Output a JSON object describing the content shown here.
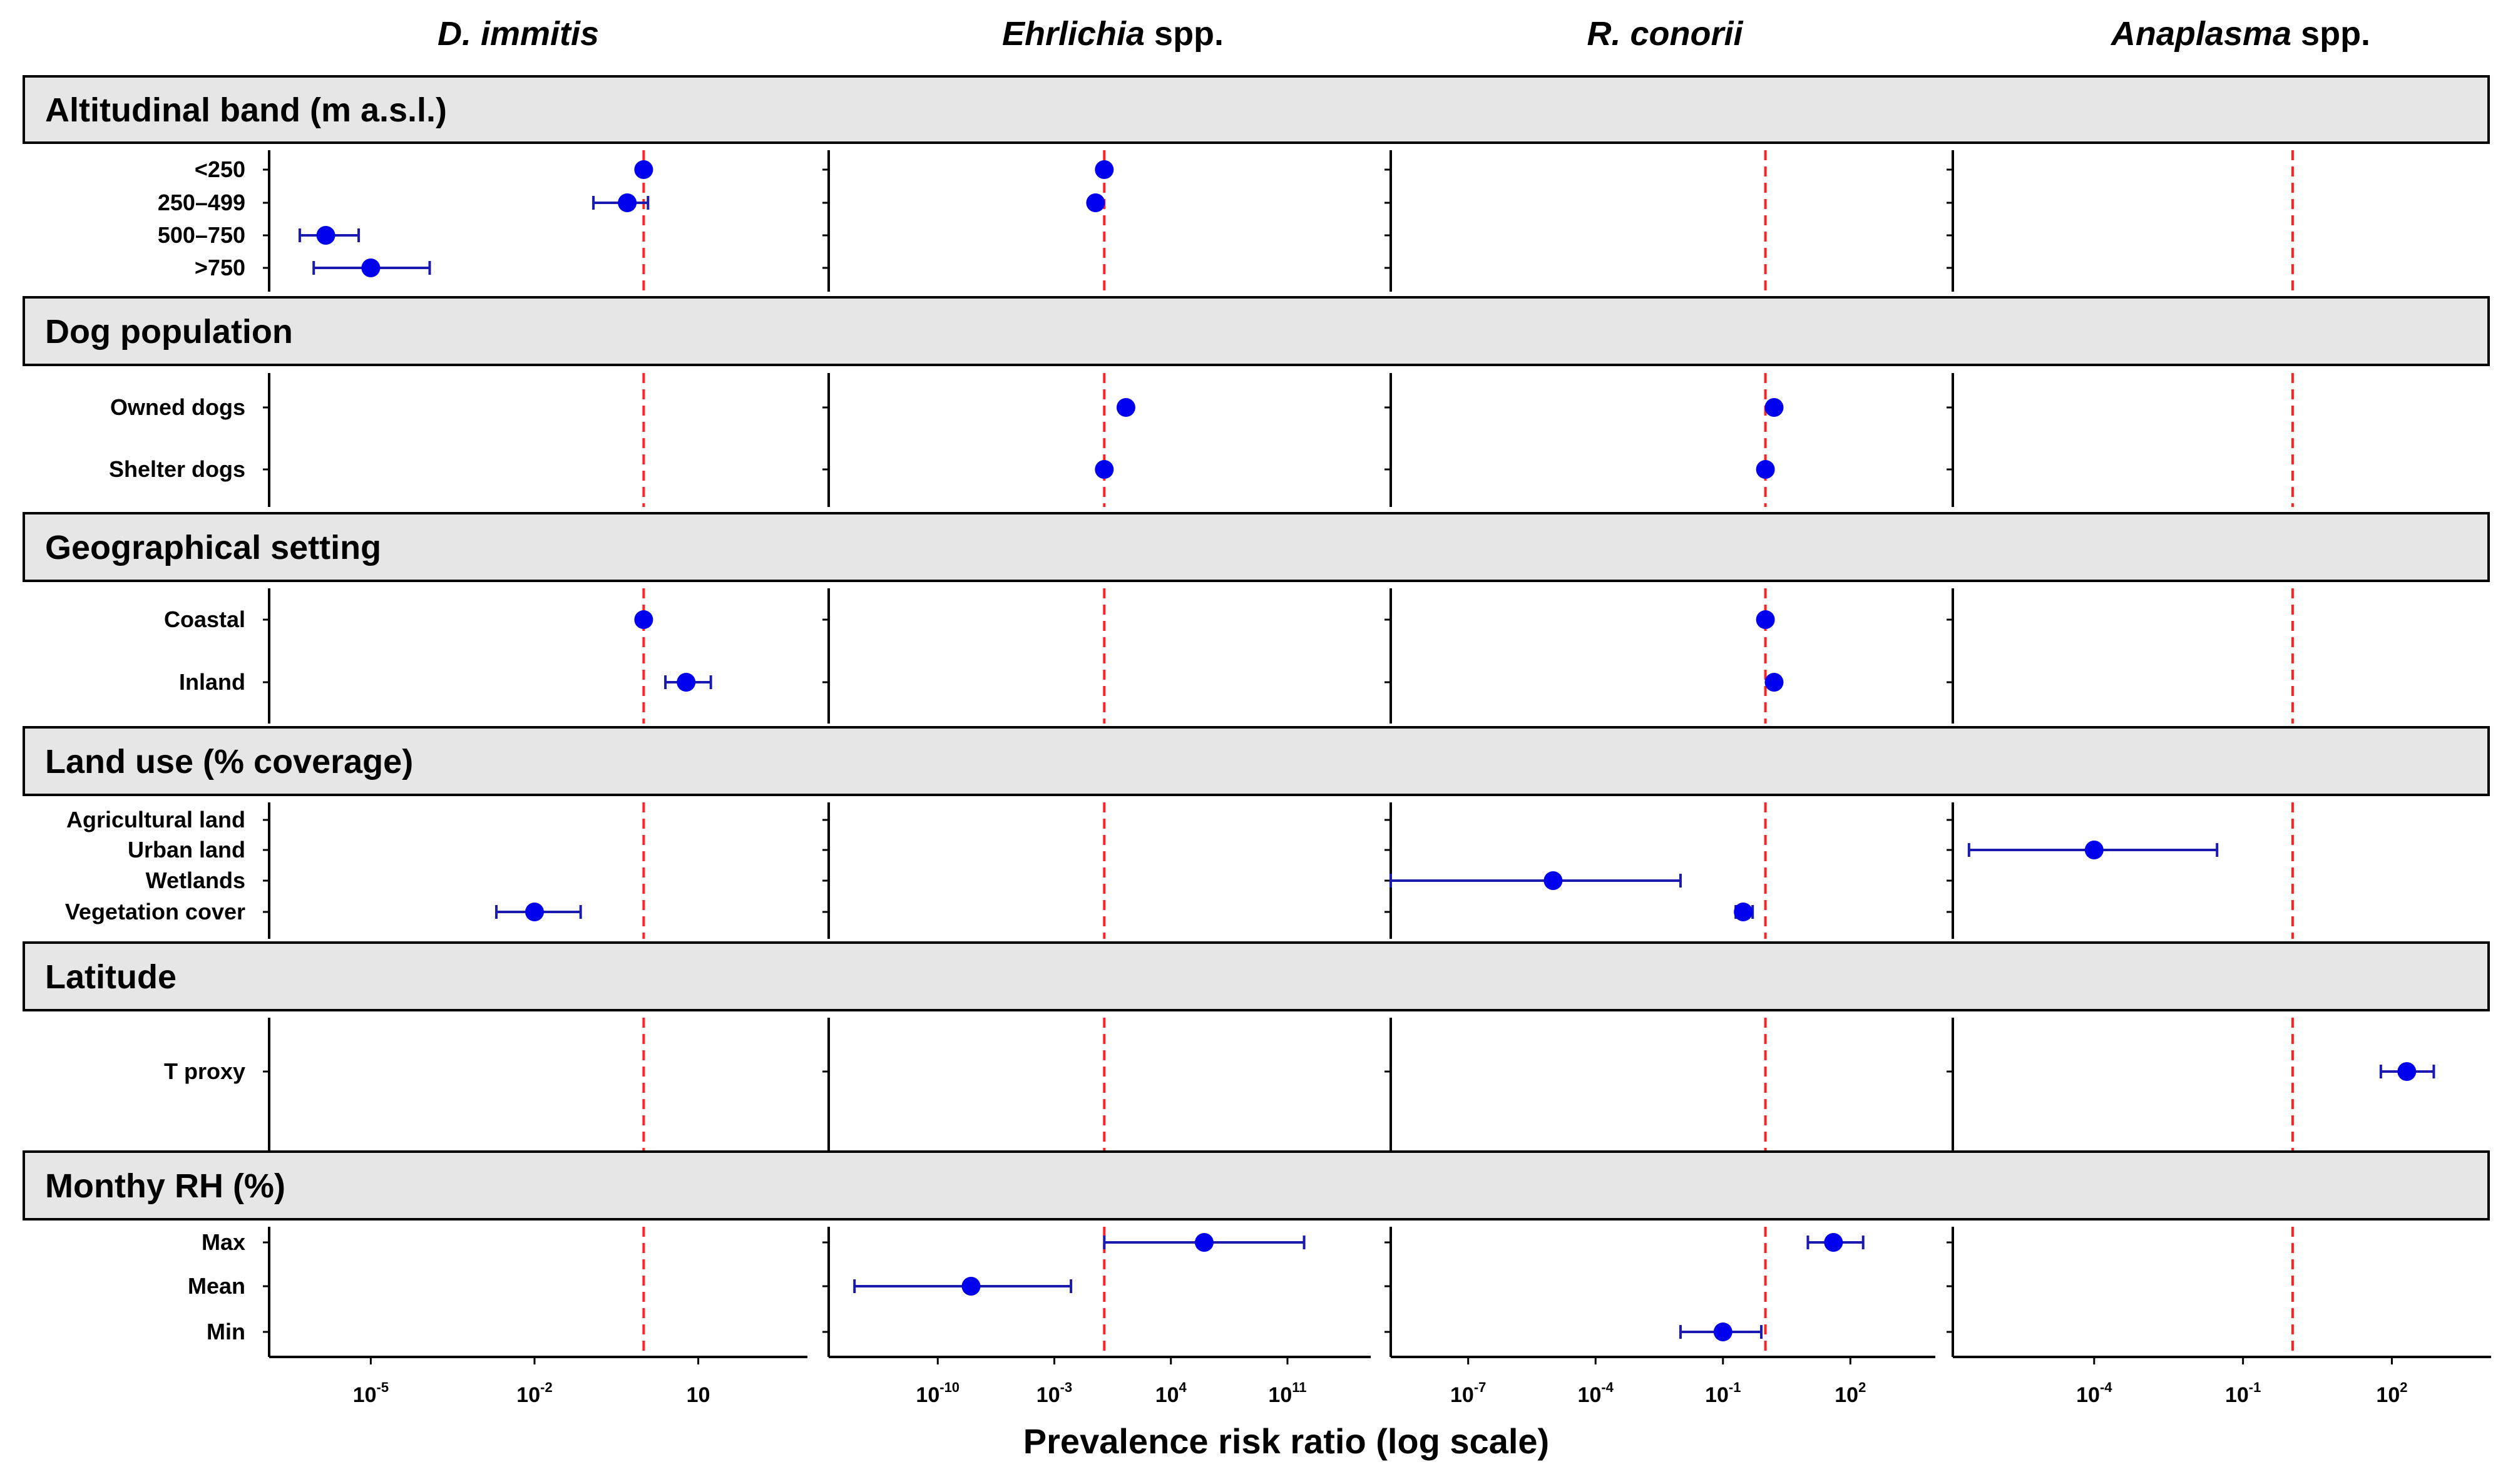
{
  "chart_data": {
    "type": "scatter",
    "xlabel": "Prevalence risk ratio (log scale)",
    "x_scale": "log",
    "reference_line": 1,
    "colors": {
      "point": "#0000ee",
      "ref_line": "#ff2222",
      "header_bg": "#e6e6e6"
    },
    "panels": [
      {
        "title_italic": "D. immitis",
        "title_rest": "",
        "xlim": [
          1e-07,
          1000
        ],
        "ticks": [
          {
            "mant": "10",
            "exp": "-5",
            "value": 1e-05
          },
          {
            "mant": "10",
            "exp": "-2",
            "value": 0.01
          },
          {
            "mant": "10",
            "exp": "",
            "value": 10
          }
        ]
      },
      {
        "title_italic": "Ehrlichia",
        "title_rest": " spp.",
        "xlim": [
          1e-17,
          1e+16
        ],
        "ticks": [
          {
            "mant": "10",
            "exp": "-10",
            "value": 1e-10
          },
          {
            "mant": "10",
            "exp": "-3",
            "value": 0.001
          },
          {
            "mant": "10",
            "exp": "4",
            "value": 10000
          },
          {
            "mant": "10",
            "exp": "11",
            "value": 100000000000.0
          }
        ]
      },
      {
        "title_italic": "R. conorii",
        "title_rest": "",
        "xlim": [
          1e-09,
          10000
        ],
        "ticks": [
          {
            "mant": "10",
            "exp": "-7",
            "value": 1e-07
          },
          {
            "mant": "10",
            "exp": "-4",
            "value": 0.0001
          },
          {
            "mant": "10",
            "exp": "-1",
            "value": 0.1
          },
          {
            "mant": "10",
            "exp": "2",
            "value": 100
          }
        ]
      },
      {
        "title_italic": "Anaplasma",
        "title_rest": " spp.",
        "xlim": [
          1e-07,
          10000
        ],
        "ticks": [
          {
            "mant": "10",
            "exp": "-4",
            "value": 0.0001
          },
          {
            "mant": "10",
            "exp": "-1",
            "value": 0.1
          },
          {
            "mant": "10",
            "exp": "2",
            "value": 100
          }
        ]
      }
    ],
    "groups": [
      {
        "title": "Altitudinal band (m a.s.l.)",
        "rows": [
          "<250",
          "250–499",
          "500–750",
          ">750"
        ],
        "points": [
          {
            "panel": 0,
            "row": 0,
            "est": 1
          },
          {
            "panel": 0,
            "row": 1,
            "est": 0.5,
            "lo": 0.12,
            "hi": 1.2
          },
          {
            "panel": 0,
            "row": 2,
            "est": 1.5e-06,
            "lo": 5e-07,
            "hi": 6e-06
          },
          {
            "panel": 0,
            "row": 3,
            "est": 1e-05,
            "lo": 9e-07,
            "hi": 0.00012
          },
          {
            "panel": 1,
            "row": 0,
            "est": 1
          },
          {
            "panel": 1,
            "row": 1,
            "est": 0.3,
            "lo": 0.15,
            "hi": 0.6
          }
        ]
      },
      {
        "title": "Dog population",
        "rows": [
          "Owned dogs",
          "Shelter dogs"
        ],
        "points": [
          {
            "panel": 1,
            "row": 0,
            "est": 20
          },
          {
            "panel": 1,
            "row": 1,
            "est": 1
          },
          {
            "panel": 2,
            "row": 0,
            "est": 1.6
          },
          {
            "panel": 2,
            "row": 1,
            "est": 1
          }
        ]
      },
      {
        "title": "Geographical setting",
        "rows": [
          "Coastal",
          "Inland"
        ],
        "points": [
          {
            "panel": 0,
            "row": 0,
            "est": 1
          },
          {
            "panel": 0,
            "row": 1,
            "est": 6,
            "lo": 2.5,
            "hi": 17
          },
          {
            "panel": 2,
            "row": 0,
            "est": 1
          },
          {
            "panel": 2,
            "row": 1,
            "est": 1.6
          }
        ]
      },
      {
        "title": "Land use (% coverage)",
        "rows": [
          "Agricultural land",
          "Urban land",
          "Wetlands",
          "Vegetation cover"
        ],
        "points": [
          {
            "panel": 2,
            "row": 2,
            "est": 1e-05,
            "lo": 1.5e-09,
            "hi": 0.01
          },
          {
            "panel": 2,
            "row": 3,
            "est": 0.3,
            "lo": 0.2,
            "hi": 0.5
          },
          {
            "panel": 3,
            "row": 1,
            "est": 0.0001,
            "lo": 3e-07,
            "hi": 0.03
          },
          {
            "panel": 0,
            "row": 3,
            "est": 0.01,
            "lo": 0.002,
            "hi": 0.07
          }
        ]
      },
      {
        "title": "Latitude",
        "rows": [
          "T proxy"
        ],
        "points": [
          {
            "panel": 3,
            "row": 0,
            "est": 200,
            "lo": 60,
            "hi": 700
          }
        ]
      },
      {
        "title": "Monthy RH (%)",
        "rows": [
          "Max",
          "Mean",
          "Min"
        ],
        "points": [
          {
            "panel": 1,
            "row": 0,
            "est": 1000000.0,
            "lo": 1,
            "hi": 1000000000000.0
          },
          {
            "panel": 1,
            "row": 1,
            "est": 1e-08,
            "lo": 1e-15,
            "hi": 0.01
          },
          {
            "panel": 2,
            "row": 0,
            "est": 40,
            "lo": 10,
            "hi": 200
          },
          {
            "panel": 2,
            "row": 2,
            "est": 0.1,
            "lo": 0.01,
            "hi": 0.8
          }
        ]
      }
    ]
  }
}
